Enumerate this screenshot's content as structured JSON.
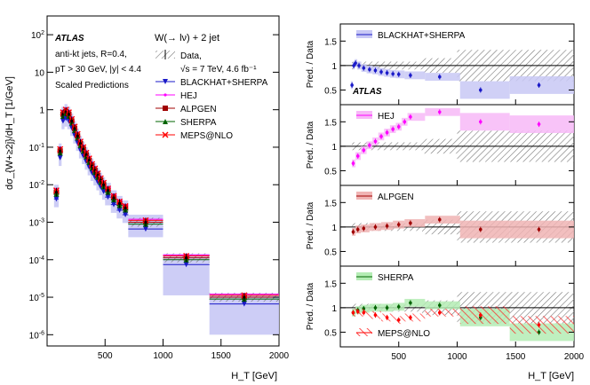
{
  "chart_data": [
    {
      "type": "scatter",
      "id": "main",
      "title": "W(→ lν) + 2 jet",
      "ylabel": "dσ_{W+≥2j}/dH_T [1/GeV]",
      "xlabel": "H_T [GeV]",
      "xlim": [
        0,
        2000
      ],
      "ylim_log10": [
        -6.3,
        2.5
      ],
      "xticks": [
        500,
        1000,
        1500,
        2000
      ],
      "yticks": [
        {
          "exp": 2,
          "label": "10^2"
        },
        {
          "exp": 1,
          "label": "10"
        },
        {
          "exp": 0,
          "label": "1"
        },
        {
          "exp": -1,
          "label": "10^-1"
        },
        {
          "exp": -2,
          "label": "10^-2"
        },
        {
          "exp": -3,
          "label": "10^-3"
        },
        {
          "exp": -4,
          "label": "10^-4"
        },
        {
          "exp": -5,
          "label": "10^-5"
        },
        {
          "exp": -6,
          "label": "10^-6"
        }
      ],
      "annotations": {
        "atlas": "ATLAS",
        "line1": "anti-kt jets, R=0.4,",
        "line2": "pT > 30 GeV, |y| < 4.4",
        "line3": "Scaled Predictions"
      },
      "legend": [
        {
          "label": "Data,",
          "color": "#000000",
          "marker": "hatch"
        },
        {
          "label": "√s = 7 TeV, 4.6 fb⁻¹",
          "color": "#000000",
          "marker": "none"
        },
        {
          "label": "BLACKHAT+SHERPA",
          "color": "#1a1ac8",
          "marker": "triangle-down"
        },
        {
          "label": "HEJ",
          "color": "#ff00ff",
          "marker": "dot"
        },
        {
          "label": "ALPGEN",
          "color": "#a00000",
          "marker": "square"
        },
        {
          "label": "SHERPA",
          "color": "#006400",
          "marker": "triangle-up"
        },
        {
          "label": "MEPS@NLO",
          "color": "#ff0000",
          "marker": "cross"
        }
      ],
      "bins": [
        {
          "lo": 60,
          "hi": 100,
          "logv": -2.2
        },
        {
          "lo": 100,
          "hi": 125,
          "logv": -1.1
        },
        {
          "lo": 125,
          "hi": 150,
          "logv": -0.12
        },
        {
          "lo": 150,
          "hi": 175,
          "logv": -0.05
        },
        {
          "lo": 175,
          "hi": 200,
          "logv": -0.12
        },
        {
          "lo": 200,
          "hi": 225,
          "logv": -0.3
        },
        {
          "lo": 225,
          "hi": 250,
          "logv": -0.5
        },
        {
          "lo": 250,
          "hi": 275,
          "logv": -0.7
        },
        {
          "lo": 275,
          "hi": 300,
          "logv": -0.9
        },
        {
          "lo": 300,
          "hi": 325,
          "logv": -1.05
        },
        {
          "lo": 325,
          "hi": 350,
          "logv": -1.2
        },
        {
          "lo": 350,
          "hi": 375,
          "logv": -1.35
        },
        {
          "lo": 375,
          "hi": 400,
          "logv": -1.5
        },
        {
          "lo": 400,
          "hi": 425,
          "logv": -1.62
        },
        {
          "lo": 425,
          "hi": 450,
          "logv": -1.75
        },
        {
          "lo": 450,
          "hi": 475,
          "logv": -1.88
        },
        {
          "lo": 475,
          "hi": 500,
          "logv": -2.0
        },
        {
          "lo": 500,
          "hi": 550,
          "logv": -2.15
        },
        {
          "lo": 550,
          "hi": 600,
          "logv": -2.35
        },
        {
          "lo": 600,
          "hi": 650,
          "logv": -2.5
        },
        {
          "lo": 650,
          "hi": 700,
          "logv": -2.62
        },
        {
          "lo": 700,
          "hi": 1000,
          "logv": -3.0
        },
        {
          "lo": 1000,
          "hi": 1400,
          "logv": -3.95
        },
        {
          "lo": 1400,
          "hi": 2000,
          "logv": -5.0
        }
      ]
    },
    {
      "type": "line",
      "id": "ratios",
      "xlabel": "H_T [GeV]",
      "ylabel": "Pred. / Data",
      "xlim": [
        0,
        2000
      ],
      "ylim": [
        0.2,
        1.85
      ],
      "yticks": [
        0.5,
        1,
        1.5
      ],
      "xticks": [
        500,
        1000,
        1500,
        2000
      ],
      "atlas_label": "ATLAS",
      "panels": [
        {
          "name": "BLACKHAT+SHERPA",
          "color": "#1a1ac8",
          "band": "#c8c8f5",
          "points": [
            [
              100,
              0.6
            ],
            [
              115,
              1.0
            ],
            [
              130,
              1.05
            ],
            [
              160,
              1.0
            ],
            [
              200,
              0.95
            ],
            [
              250,
              0.92
            ],
            [
              300,
              0.9
            ],
            [
              350,
              0.87
            ],
            [
              400,
              0.85
            ],
            [
              450,
              0.83
            ],
            [
              500,
              0.82
            ],
            [
              600,
              0.8
            ],
            [
              850,
              0.77
            ],
            [
              1200,
              0.5
            ],
            [
              1700,
              0.6
            ]
          ]
        },
        {
          "name": "HEJ",
          "color": "#ff00ff",
          "band": "#f7b8f7",
          "points": [
            [
              110,
              0.65
            ],
            [
              150,
              0.8
            ],
            [
              200,
              0.92
            ],
            [
              250,
              1.02
            ],
            [
              300,
              1.1
            ],
            [
              350,
              1.2
            ],
            [
              400,
              1.28
            ],
            [
              450,
              1.35
            ],
            [
              500,
              1.4
            ],
            [
              550,
              1.5
            ],
            [
              600,
              1.6
            ],
            [
              850,
              1.7
            ],
            [
              1200,
              1.5
            ],
            [
              1700,
              1.45
            ]
          ]
        },
        {
          "name": "ALPGEN",
          "color": "#a00000",
          "band": "#f0b4b4",
          "points": [
            [
              110,
              0.9
            ],
            [
              150,
              0.95
            ],
            [
              200,
              0.97
            ],
            [
              300,
              1.0
            ],
            [
              400,
              1.02
            ],
            [
              500,
              1.05
            ],
            [
              600,
              1.08
            ],
            [
              850,
              1.15
            ],
            [
              1200,
              0.95
            ],
            [
              1700,
              0.95
            ]
          ]
        },
        {
          "name": "SHERPA",
          "color": "#006400",
          "band": "#b4ecb4",
          "points": [
            [
              110,
              0.9
            ],
            [
              150,
              0.95
            ],
            [
              200,
              0.98
            ],
            [
              300,
              1.0
            ],
            [
              400,
              1.0
            ],
            [
              500,
              1.02
            ],
            [
              600,
              1.1
            ],
            [
              850,
              1.05
            ],
            [
              1200,
              0.8
            ],
            [
              1700,
              0.5
            ]
          ]
        },
        {
          "name": "MEPS@NLO",
          "color": "#ff0000",
          "band": "#ff9c9c",
          "points": [
            [
              110,
              0.9
            ],
            [
              150,
              0.92
            ],
            [
              200,
              0.9
            ],
            [
              300,
              0.85
            ],
            [
              400,
              0.8
            ],
            [
              500,
              0.75
            ],
            [
              600,
              0.8
            ],
            [
              850,
              0.9
            ],
            [
              1200,
              0.85
            ],
            [
              1700,
              0.65
            ]
          ]
        }
      ]
    }
  ]
}
